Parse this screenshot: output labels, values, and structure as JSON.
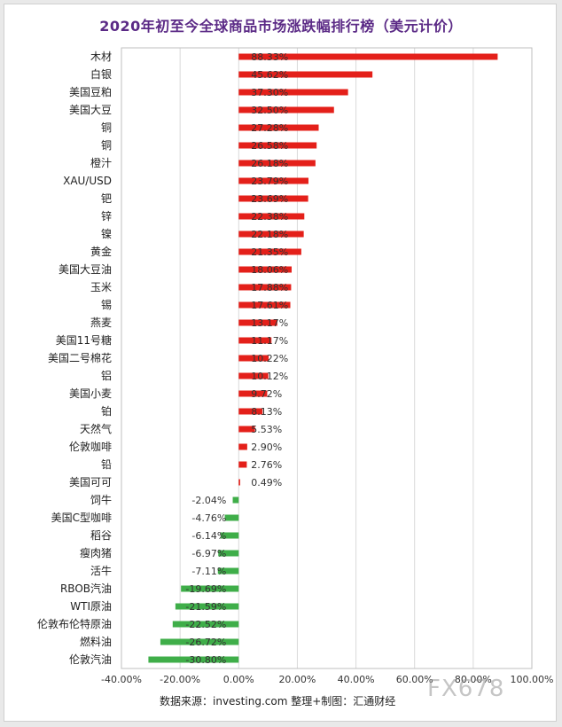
{
  "chart_data": {
    "type": "bar",
    "orientation": "horizontal",
    "title": "2020年初至今全球商品市场涨跌幅排行榜（美元计价）",
    "categories": [
      "木材",
      "白银",
      "美国豆粕",
      "美国大豆",
      "铜",
      "铜",
      "橙汁",
      "XAU/USD",
      "钯",
      "锌",
      "镍",
      "黄金",
      "美国大豆油",
      "玉米",
      "锡",
      "燕麦",
      "美国11号糖",
      "美国二号棉花",
      "铝",
      "美国小麦",
      "铂",
      "天然气",
      "伦敦咖啡",
      "铅",
      "美国可可",
      "饲牛",
      "美国C型咖啡",
      "稻谷",
      "瘦肉猪",
      "活牛",
      "RBOB汽油",
      "WTI原油",
      "伦敦布伦特原油",
      "燃料油",
      "伦敦汽油"
    ],
    "values": [
      88.33,
      45.62,
      37.3,
      32.5,
      27.28,
      26.58,
      26.18,
      23.79,
      23.69,
      22.38,
      22.18,
      21.35,
      18.06,
      17.88,
      17.61,
      13.17,
      11.17,
      10.22,
      10.12,
      9.72,
      8.13,
      5.53,
      2.9,
      2.76,
      0.49,
      -2.04,
      -4.76,
      -6.14,
      -6.97,
      -7.11,
      -19.69,
      -21.59,
      -22.52,
      -26.72,
      -30.8
    ],
    "labels": [
      "88.33%",
      "45.62%",
      "37.30%",
      "32.50%",
      "27.28%",
      "26.58%",
      "26.18%",
      "23.79%",
      "23.69%",
      "22.38%",
      "22.18%",
      "21.35%",
      "18.06%",
      "17.88%",
      "17.61%",
      "13.17%",
      "11.17%",
      "10.22%",
      "10.12%",
      "9.72%",
      "8.13%",
      "5.53%",
      "2.90%",
      "2.76%",
      "0.49%",
      "-2.04%",
      "-4.76%",
      "-6.14%",
      "-6.97%",
      "-7.11%",
      "-19.69%",
      "-21.59%",
      "-22.52%",
      "-26.72%",
      "-30.80%"
    ],
    "xlim": [
      -40,
      100
    ],
    "x_ticks": [
      "-40.00%",
      "-20.00%",
      "0.00%",
      "20.00%",
      "40.00%",
      "60.00%",
      "80.00%",
      "100.00%"
    ],
    "x_tick_values": [
      -40,
      -20,
      0,
      20,
      40,
      60,
      80,
      100
    ],
    "grid": true,
    "colors": {
      "positive": "#e4201a",
      "negative": "#3fae49",
      "grid": "#d9d9d9",
      "title": "#5b2a86"
    }
  },
  "footer": {
    "source": "数据来源：investing.com 整理+制图：汇通财经"
  },
  "watermark": "FX678"
}
